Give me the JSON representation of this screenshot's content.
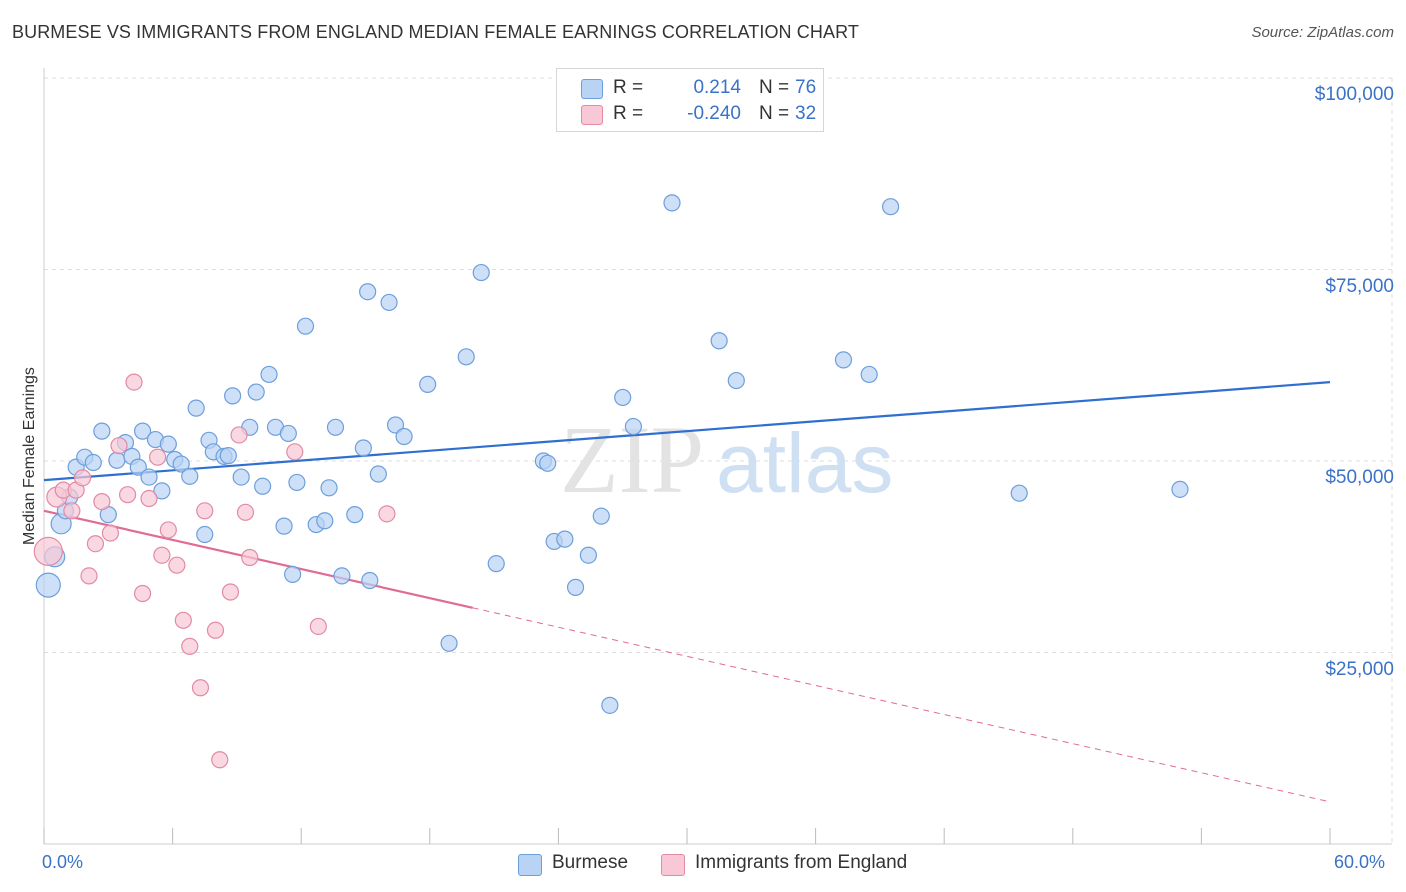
{
  "header": {
    "title": "BURMESE VS IMMIGRANTS FROM ENGLAND MEDIAN FEMALE EARNINGS CORRELATION CHART",
    "source": "Source: ZipAtlas.com"
  },
  "legend": {
    "series": [
      {
        "r_label": "R =",
        "r_value": "0.214",
        "n_label": "N =",
        "n_value": "76"
      },
      {
        "r_label": "R =",
        "r_value": "-0.240",
        "n_label": "N =",
        "n_value": "32"
      }
    ]
  },
  "bottom_legend": [
    "Burmese",
    "Immigrants from England"
  ],
  "watermark": {
    "zip": "ZIP",
    "atlas": "atlas"
  },
  "colors": {
    "burmese_fill": "#b8d3f3",
    "burmese_stroke": "#6d9fdc",
    "burmese_line": "#2f6fd0",
    "england_fill": "#f8c8d6",
    "england_stroke": "#e28aa6",
    "england_line": "#e06b94",
    "axis_text": "#3a72c8",
    "grid": "#dddddd"
  },
  "chart_data": {
    "type": "scatter",
    "title": "BURMESE VS IMMIGRANTS FROM ENGLAND MEDIAN FEMALE EARNINGS CORRELATION CHART",
    "xlabel": "",
    "ylabel": "Median Female Earnings",
    "xlim": [
      0,
      60
    ],
    "ylim": [
      0,
      105000
    ],
    "x_tick_labels": [
      "0.0%",
      "60.0%"
    ],
    "y_ticks": [
      25000,
      50000,
      75000,
      100000
    ],
    "y_tick_labels": [
      "$25,000",
      "$50,000",
      "$75,000",
      "$100,000"
    ],
    "grid": true,
    "series": [
      {
        "name": "Burmese",
        "r": 0.214,
        "n": 76,
        "trend": {
          "x": [
            0,
            60
          ],
          "y": [
            47500,
            60300
          ]
        },
        "points": [
          {
            "x": 0.2,
            "y": 33800,
            "s": 12
          },
          {
            "x": 0.5,
            "y": 37500,
            "s": 10
          },
          {
            "x": 0.8,
            "y": 41800,
            "s": 10
          },
          {
            "x": 1.0,
            "y": 43500,
            "s": 8
          },
          {
            "x": 1.2,
            "y": 45300,
            "s": 8
          },
          {
            "x": 1.5,
            "y": 49200,
            "s": 8
          },
          {
            "x": 1.9,
            "y": 50500,
            "s": 8
          },
          {
            "x": 2.3,
            "y": 49800,
            "s": 8
          },
          {
            "x": 2.7,
            "y": 53900,
            "s": 8
          },
          {
            "x": 3.0,
            "y": 43000,
            "s": 8
          },
          {
            "x": 3.4,
            "y": 50100,
            "s": 8
          },
          {
            "x": 3.8,
            "y": 52400,
            "s": 8
          },
          {
            "x": 4.1,
            "y": 50600,
            "s": 8
          },
          {
            "x": 4.4,
            "y": 49200,
            "s": 8
          },
          {
            "x": 4.6,
            "y": 53900,
            "s": 8
          },
          {
            "x": 4.9,
            "y": 47900,
            "s": 8
          },
          {
            "x": 5.2,
            "y": 52800,
            "s": 8
          },
          {
            "x": 5.5,
            "y": 46100,
            "s": 8
          },
          {
            "x": 5.8,
            "y": 52200,
            "s": 8
          },
          {
            "x": 6.1,
            "y": 50200,
            "s": 8
          },
          {
            "x": 6.4,
            "y": 49600,
            "s": 8
          },
          {
            "x": 6.8,
            "y": 48000,
            "s": 8
          },
          {
            "x": 7.1,
            "y": 56900,
            "s": 8
          },
          {
            "x": 7.5,
            "y": 40400,
            "s": 8
          },
          {
            "x": 7.7,
            "y": 52700,
            "s": 8
          },
          {
            "x": 7.9,
            "y": 51200,
            "s": 8
          },
          {
            "x": 8.4,
            "y": 50600,
            "s": 8
          },
          {
            "x": 8.6,
            "y": 50700,
            "s": 8
          },
          {
            "x": 8.8,
            "y": 58500,
            "s": 8
          },
          {
            "x": 9.2,
            "y": 47900,
            "s": 8
          },
          {
            "x": 9.6,
            "y": 54400,
            "s": 8
          },
          {
            "x": 9.9,
            "y": 59000,
            "s": 8
          },
          {
            "x": 10.2,
            "y": 46700,
            "s": 8
          },
          {
            "x": 10.5,
            "y": 61300,
            "s": 8
          },
          {
            "x": 10.8,
            "y": 54400,
            "s": 8
          },
          {
            "x": 11.2,
            "y": 41500,
            "s": 8
          },
          {
            "x": 11.4,
            "y": 53600,
            "s": 8
          },
          {
            "x": 11.6,
            "y": 35200,
            "s": 8
          },
          {
            "x": 11.8,
            "y": 47200,
            "s": 8
          },
          {
            "x": 12.2,
            "y": 67600,
            "s": 8
          },
          {
            "x": 12.7,
            "y": 41700,
            "s": 8
          },
          {
            "x": 13.1,
            "y": 42200,
            "s": 8
          },
          {
            "x": 13.3,
            "y": 46500,
            "s": 8
          },
          {
            "x": 13.6,
            "y": 54400,
            "s": 8
          },
          {
            "x": 13.9,
            "y": 35000,
            "s": 8
          },
          {
            "x": 14.5,
            "y": 43000,
            "s": 8
          },
          {
            "x": 14.9,
            "y": 51700,
            "s": 8
          },
          {
            "x": 15.1,
            "y": 72100,
            "s": 8
          },
          {
            "x": 15.2,
            "y": 34400,
            "s": 8
          },
          {
            "x": 15.6,
            "y": 48300,
            "s": 8
          },
          {
            "x": 16.1,
            "y": 70700,
            "s": 8
          },
          {
            "x": 16.4,
            "y": 54700,
            "s": 8
          },
          {
            "x": 16.8,
            "y": 53200,
            "s": 8
          },
          {
            "x": 17.9,
            "y": 60000,
            "s": 8
          },
          {
            "x": 18.9,
            "y": 26200,
            "s": 8
          },
          {
            "x": 19.7,
            "y": 63600,
            "s": 8
          },
          {
            "x": 20.4,
            "y": 74600,
            "s": 8
          },
          {
            "x": 21.1,
            "y": 36600,
            "s": 8
          },
          {
            "x": 23.3,
            "y": 50000,
            "s": 8
          },
          {
            "x": 23.5,
            "y": 49700,
            "s": 8
          },
          {
            "x": 23.8,
            "y": 39500,
            "s": 8
          },
          {
            "x": 24.3,
            "y": 39800,
            "s": 8
          },
          {
            "x": 24.8,
            "y": 33500,
            "s": 8
          },
          {
            "x": 25.4,
            "y": 37700,
            "s": 8
          },
          {
            "x": 26.0,
            "y": 42800,
            "s": 8
          },
          {
            "x": 26.4,
            "y": 18100,
            "s": 8
          },
          {
            "x": 27.0,
            "y": 58300,
            "s": 8
          },
          {
            "x": 27.5,
            "y": 54500,
            "s": 8
          },
          {
            "x": 29.3,
            "y": 83700,
            "s": 8
          },
          {
            "x": 31.5,
            "y": 65700,
            "s": 8
          },
          {
            "x": 32.3,
            "y": 60500,
            "s": 8
          },
          {
            "x": 37.3,
            "y": 63200,
            "s": 8
          },
          {
            "x": 38.5,
            "y": 61300,
            "s": 8
          },
          {
            "x": 39.5,
            "y": 83200,
            "s": 8
          },
          {
            "x": 45.5,
            "y": 45800,
            "s": 8
          },
          {
            "x": 53.0,
            "y": 46300,
            "s": 8
          }
        ]
      },
      {
        "name": "Immigrants from England",
        "r": -0.24,
        "n": 32,
        "trend": {
          "x": [
            0,
            60
          ],
          "y": [
            43500,
            5500
          ],
          "solid_until_x": 20.0
        },
        "points": [
          {
            "x": 0.2,
            "y": 38200,
            "s": 14
          },
          {
            "x": 0.6,
            "y": 45300,
            "s": 10
          },
          {
            "x": 0.9,
            "y": 46200,
            "s": 8
          },
          {
            "x": 1.3,
            "y": 43500,
            "s": 8
          },
          {
            "x": 1.5,
            "y": 46200,
            "s": 8
          },
          {
            "x": 1.8,
            "y": 47800,
            "s": 8
          },
          {
            "x": 2.1,
            "y": 35000,
            "s": 8
          },
          {
            "x": 2.4,
            "y": 39200,
            "s": 8
          },
          {
            "x": 2.7,
            "y": 44700,
            "s": 8
          },
          {
            "x": 3.1,
            "y": 40600,
            "s": 8
          },
          {
            "x": 3.5,
            "y": 52000,
            "s": 8
          },
          {
            "x": 3.9,
            "y": 45600,
            "s": 8
          },
          {
            "x": 4.2,
            "y": 60300,
            "s": 8
          },
          {
            "x": 4.6,
            "y": 32700,
            "s": 8
          },
          {
            "x": 4.9,
            "y": 45100,
            "s": 8
          },
          {
            "x": 5.3,
            "y": 50500,
            "s": 8
          },
          {
            "x": 5.5,
            "y": 37700,
            "s": 8
          },
          {
            "x": 5.8,
            "y": 41000,
            "s": 8
          },
          {
            "x": 6.2,
            "y": 36400,
            "s": 8
          },
          {
            "x": 6.5,
            "y": 29200,
            "s": 8
          },
          {
            "x": 6.8,
            "y": 25800,
            "s": 8
          },
          {
            "x": 7.3,
            "y": 20400,
            "s": 8
          },
          {
            "x": 7.5,
            "y": 43500,
            "s": 8
          },
          {
            "x": 8.0,
            "y": 27900,
            "s": 8
          },
          {
            "x": 8.2,
            "y": 11000,
            "s": 8
          },
          {
            "x": 8.7,
            "y": 32900,
            "s": 8
          },
          {
            "x": 9.1,
            "y": 53400,
            "s": 8
          },
          {
            "x": 9.4,
            "y": 43300,
            "s": 8
          },
          {
            "x": 9.6,
            "y": 37400,
            "s": 8
          },
          {
            "x": 11.7,
            "y": 51200,
            "s": 8
          },
          {
            "x": 12.8,
            "y": 28400,
            "s": 8
          },
          {
            "x": 16.0,
            "y": 43100,
            "s": 8
          }
        ]
      }
    ]
  }
}
